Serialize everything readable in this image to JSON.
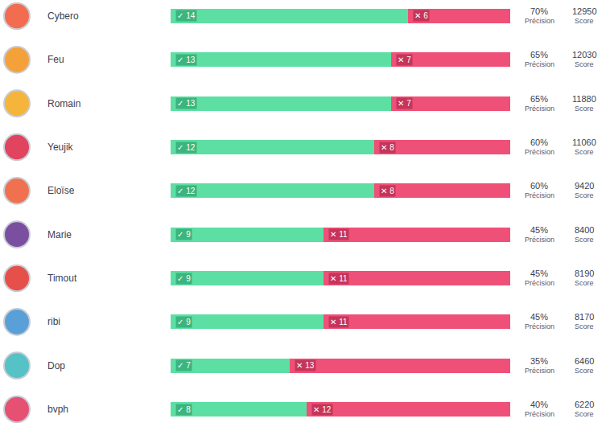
{
  "chart_data": {
    "type": "bar",
    "orientation": "horizontal",
    "stacked": true,
    "data_labels": true,
    "categories": [
      "Cybero",
      "Feu",
      "Romain",
      "Yeujik",
      "Eloïse",
      "Marie",
      "Timout",
      "ribi",
      "Dop",
      "bvph"
    ],
    "series": [
      {
        "color": "#5ddfa4",
        "values": [
          14,
          13,
          13,
          12,
          12,
          9,
          9,
          9,
          7,
          8
        ],
        "value_labels": [
          "✓ 14",
          "✓ 13",
          "✓ 13",
          "✓ 12",
          "✓ 12",
          "✓ 9",
          "✓ 9",
          "✓ 9",
          "✓ 7",
          "✓ 8"
        ]
      },
      {
        "color": "#ef5077",
        "values": [
          6,
          7,
          7,
          8,
          8,
          11,
          11,
          11,
          13,
          12
        ],
        "value_labels": [
          "✕ 6",
          "✕ 7",
          "✕ 7",
          "✕ 8",
          "✕ 8",
          "✕ 11",
          "✕ 11",
          "✕ 11",
          "✕ 13",
          "✕ 12"
        ]
      }
    ],
    "xlim": [
      0,
      20
    ],
    "xticks": [],
    "columns": [
      {
        "label": "Précision",
        "values": [
          70,
          65,
          65,
          60,
          60,
          45,
          45,
          45,
          35,
          40
        ],
        "value_labels": [
          "70%",
          "65%",
          "65%",
          "60%",
          "60%",
          "45%",
          "45%",
          "45%",
          "35%",
          "40%"
        ]
      },
      {
        "label": "Score",
        "values": [
          12950,
          12030,
          11880,
          11060,
          9420,
          8400,
          8190,
          8170,
          6460,
          6220
        ]
      }
    ]
  }
}
